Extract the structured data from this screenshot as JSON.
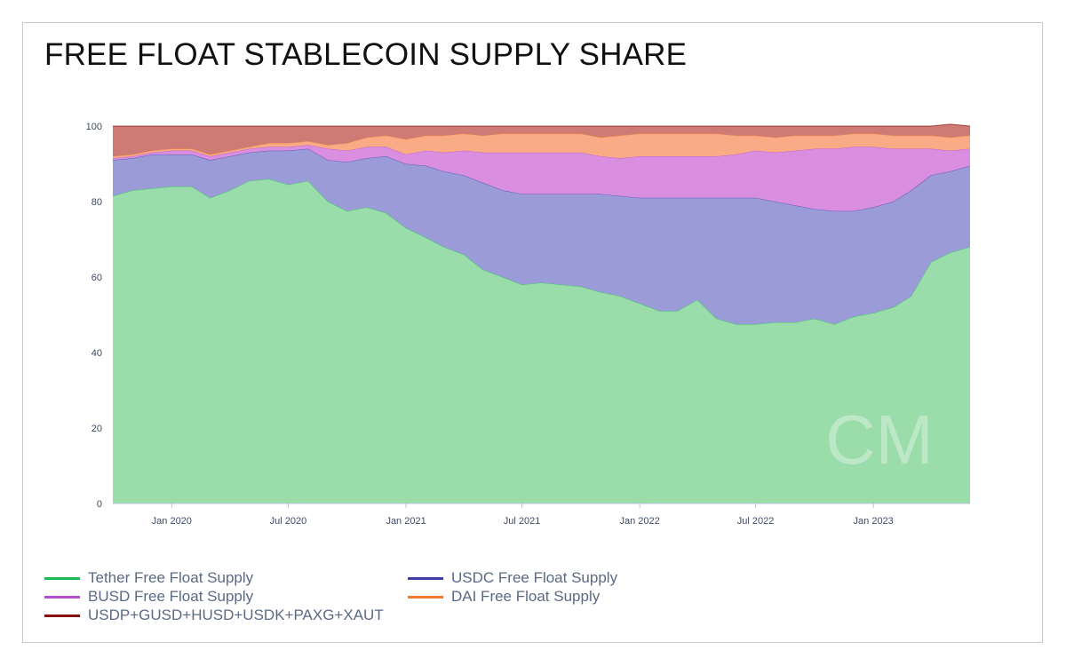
{
  "title": "FREE FLOAT STABLECOIN SUPPLY SHARE",
  "legend": [
    {
      "label": "Tether Free Float Supply",
      "color": "#1db954"
    },
    {
      "label": "USDC Free Float Supply",
      "color": "#3f3ea8"
    },
    {
      "label": "BUSD Free Float Supply",
      "color": "#b84ccf"
    },
    {
      "label": "DAI Free Float Supply",
      "color": "#f07a2c"
    },
    {
      "label": "USDP+GUSD+HUSD+USDK+PAXG+XAUT",
      "color": "#8b0f0f"
    }
  ],
  "chart_data": {
    "type": "area",
    "stacked": true,
    "ylim": [
      0,
      100
    ],
    "y_ticks": [
      "0",
      "20",
      "40",
      "60",
      "80",
      "100"
    ],
    "x_ticks": [
      "Jan 2020",
      "Jul 2020",
      "Jan 2021",
      "Jul 2021",
      "Jan 2022",
      "Jul 2022",
      "Jan 2023"
    ],
    "fill_colors": [
      "#9adcaa",
      "#9b9bd8",
      "#da8ee0",
      "#f8ab85",
      "#cd7b74"
    ],
    "x": [
      "2019-10-01",
      "2019-11-01",
      "2019-12-01",
      "2020-01-01",
      "2020-02-01",
      "2020-03-01",
      "2020-04-01",
      "2020-05-01",
      "2020-06-01",
      "2020-07-01",
      "2020-08-01",
      "2020-09-01",
      "2020-10-01",
      "2020-11-01",
      "2020-12-01",
      "2021-01-01",
      "2021-02-01",
      "2021-03-01",
      "2021-04-01",
      "2021-05-01",
      "2021-06-01",
      "2021-07-01",
      "2021-08-01",
      "2021-09-01",
      "2021-10-01",
      "2021-11-01",
      "2021-12-01",
      "2022-01-01",
      "2022-02-01",
      "2022-03-01",
      "2022-04-01",
      "2022-05-01",
      "2022-06-01",
      "2022-07-01",
      "2022-08-01",
      "2022-09-01",
      "2022-10-01",
      "2022-11-01",
      "2022-12-01",
      "2023-01-01",
      "2023-02-01",
      "2023-03-01",
      "2023-04-01",
      "2023-05-01",
      "2023-06-01"
    ],
    "series": [
      {
        "name": "Tether Free Float Supply",
        "values": [
          81.5,
          83,
          83.5,
          84,
          84,
          81,
          83,
          85.5,
          86,
          84.5,
          85.5,
          80,
          77.5,
          78.5,
          77,
          73,
          70.5,
          68,
          66,
          62,
          60,
          58,
          58.5,
          58,
          57.5,
          56,
          55,
          53,
          51,
          51,
          54,
          49,
          47.5,
          47.5,
          48,
          48,
          49,
          47.5,
          49.5,
          50.5,
          52,
          55,
          64,
          66.5,
          68
        ]
      },
      {
        "name": "USDC Free Float Supply",
        "values": [
          9.5,
          8.5,
          9,
          8.5,
          8.5,
          10,
          9,
          7.5,
          7.5,
          9,
          8.5,
          11,
          13,
          13,
          15,
          17,
          19,
          20,
          21,
          23,
          23,
          24,
          23.5,
          24,
          24.5,
          26,
          26.5,
          28,
          30,
          30,
          27,
          32,
          33.5,
          33.5,
          32,
          31,
          29,
          30,
          28,
          28,
          28,
          28,
          23,
          21.5,
          21.5
        ]
      },
      {
        "name": "BUSD Free Float Supply",
        "values": [
          0.5,
          0.5,
          0.5,
          1,
          1,
          1,
          1,
          1,
          1,
          1,
          1,
          3,
          3,
          3,
          2.5,
          2.5,
          4,
          5,
          6.5,
          8,
          10,
          11,
          11,
          11,
          11,
          10,
          10,
          11,
          11,
          11,
          11,
          11,
          11.5,
          12.5,
          13,
          14.5,
          16,
          16.5,
          17,
          16,
          14,
          11,
          7,
          5.5,
          4.5
        ]
      },
      {
        "name": "DAI Free Float Supply",
        "values": [
          0.5,
          0.5,
          0.5,
          0.5,
          0.5,
          0.5,
          0.5,
          0.5,
          1,
          1,
          1,
          1,
          2,
          2.5,
          3,
          4,
          4,
          4.5,
          4.5,
          4.5,
          5,
          5,
          5,
          5,
          5,
          5,
          6,
          6,
          6,
          6,
          6,
          6,
          5,
          4,
          4,
          4,
          3.5,
          3.5,
          3.5,
          3.5,
          3.5,
          3.5,
          3.5,
          3.5,
          3.5
        ]
      },
      {
        "name": "USDP+GUSD+HUSD+USDK+PAXG+XAUT",
        "values": [
          8,
          7.5,
          6.5,
          6,
          6,
          7.5,
          6.5,
          5.5,
          4.5,
          4.5,
          4,
          5,
          4.5,
          3,
          2.5,
          3.5,
          2.5,
          2.5,
          2,
          2.5,
          2,
          2,
          2,
          2,
          2,
          3,
          2.5,
          2,
          2,
          2,
          2,
          2,
          2.5,
          2.5,
          3,
          2.5,
          2.5,
          2.5,
          2,
          2,
          2.5,
          2.5,
          2.5,
          3.5,
          2.5
        ]
      }
    ]
  },
  "watermark": "CM"
}
